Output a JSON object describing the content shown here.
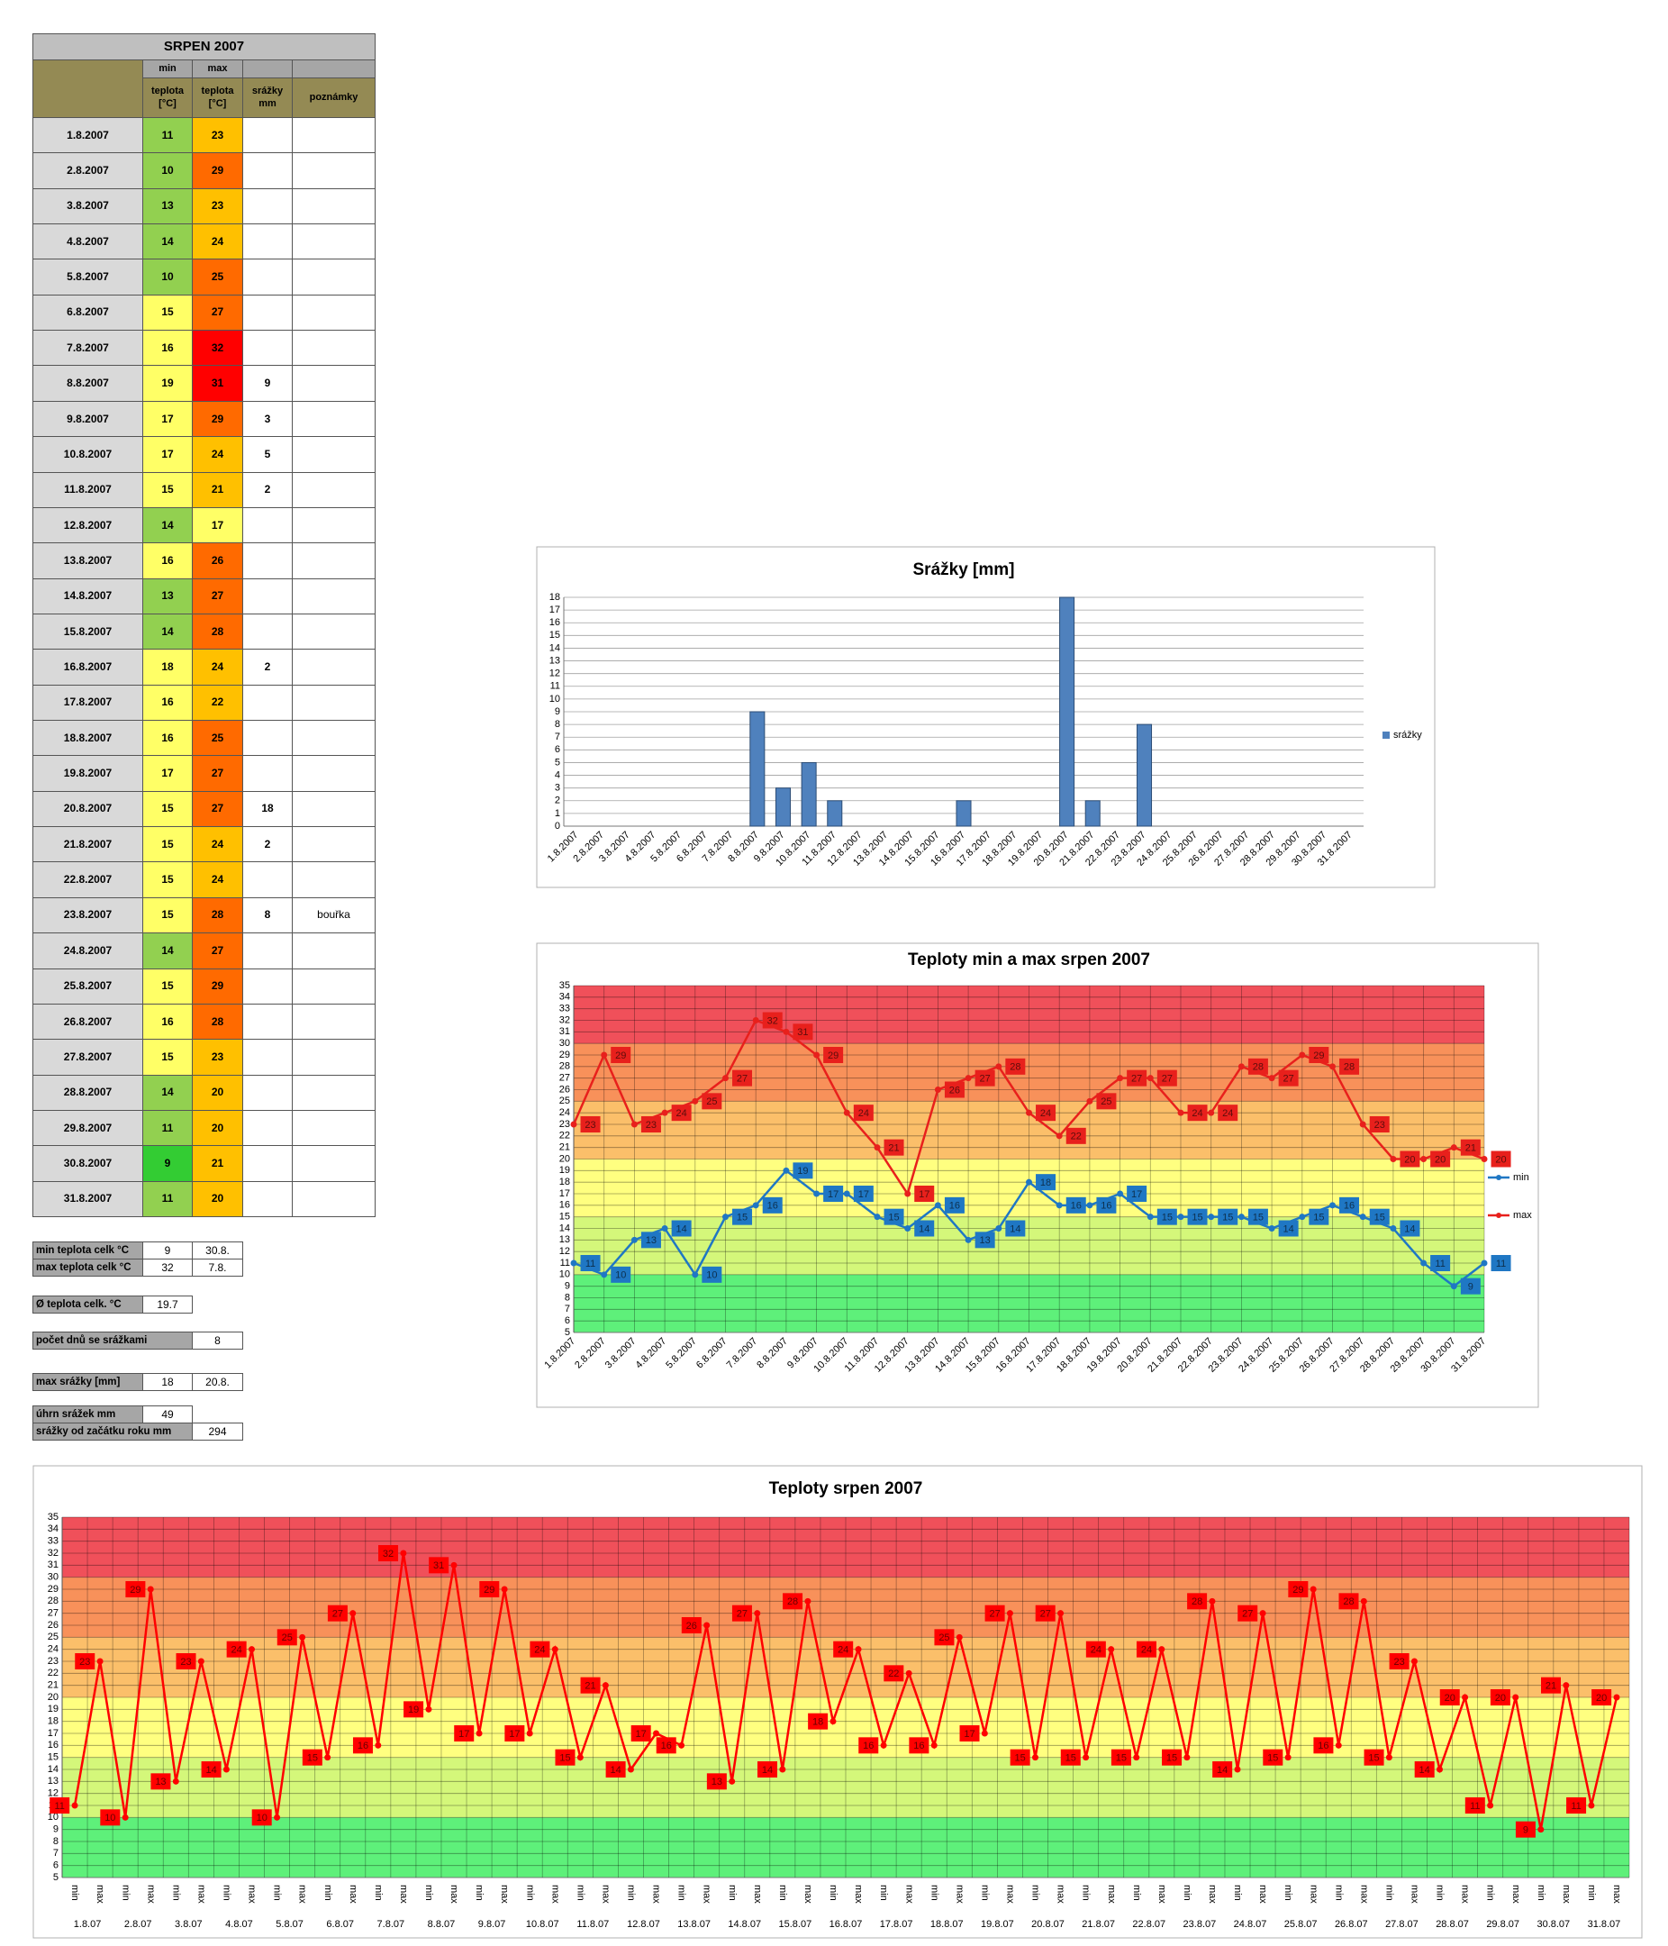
{
  "table": {
    "title": "SRPEN 2007",
    "header_top": [
      "min",
      "max"
    ],
    "header": [
      "teplota [°C]",
      "teplota [°C]",
      "srážky mm",
      "poznámky"
    ],
    "color_scale": [
      {
        "from": 5,
        "to": 10,
        "color": "#33cc33"
      },
      {
        "from": 10,
        "to": 15,
        "color": "#92d050"
      },
      {
        "from": 15,
        "to": 20,
        "color": "#ffff66"
      },
      {
        "from": 20,
        "to": 25,
        "color": "#ffc000"
      },
      {
        "from": 25,
        "to": 30,
        "color": "#ff6a00"
      },
      {
        "from": 30,
        "to": 35,
        "color": "#ff0000"
      }
    ],
    "rows": [
      [
        "1.8.2007",
        11,
        23,
        null,
        null
      ],
      [
        "2.8.2007",
        10,
        29,
        null,
        null
      ],
      [
        "3.8.2007",
        13,
        23,
        null,
        null
      ],
      [
        "4.8.2007",
        14,
        24,
        null,
        null
      ],
      [
        "5.8.2007",
        10,
        25,
        null,
        null
      ],
      [
        "6.8.2007",
        15,
        27,
        null,
        null
      ],
      [
        "7.8.2007",
        16,
        32,
        null,
        null
      ],
      [
        "8.8.2007",
        19,
        31,
        9,
        null
      ],
      [
        "9.8.2007",
        17,
        29,
        3,
        null
      ],
      [
        "10.8.2007",
        17,
        24,
        5,
        null
      ],
      [
        "11.8.2007",
        15,
        21,
        2,
        null
      ],
      [
        "12.8.2007",
        14,
        17,
        null,
        null
      ],
      [
        "13.8.2007",
        16,
        26,
        null,
        null
      ],
      [
        "14.8.2007",
        13,
        27,
        null,
        null
      ],
      [
        "15.8.2007",
        14,
        28,
        null,
        null
      ],
      [
        "16.8.2007",
        18,
        24,
        2,
        null
      ],
      [
        "17.8.2007",
        16,
        22,
        null,
        null
      ],
      [
        "18.8.2007",
        16,
        25,
        null,
        null
      ],
      [
        "19.8.2007",
        17,
        27,
        null,
        null
      ],
      [
        "20.8.2007",
        15,
        27,
        18,
        null
      ],
      [
        "21.8.2007",
        15,
        24,
        2,
        null
      ],
      [
        "22.8.2007",
        15,
        24,
        null,
        null
      ],
      [
        "23.8.2007",
        15,
        28,
        8,
        "bouřka"
      ],
      [
        "24.8.2007",
        14,
        27,
        null,
        null
      ],
      [
        "25.8.2007",
        15,
        29,
        null,
        null
      ],
      [
        "26.8.2007",
        16,
        28,
        null,
        null
      ],
      [
        "27.8.2007",
        15,
        23,
        null,
        null
      ],
      [
        "28.8.2007",
        14,
        20,
        null,
        null
      ],
      [
        "29.8.2007",
        11,
        20,
        null,
        null
      ],
      [
        "30.8.2007",
        9,
        21,
        null,
        null
      ],
      [
        "31.8.2007",
        11,
        20,
        null,
        null
      ]
    ]
  },
  "summary": [
    {
      "label": "min teplota celk °C",
      "values": [
        9,
        "30.8."
      ]
    },
    {
      "label": "max teplota celk °C",
      "values": [
        32,
        "7.8."
      ]
    },
    {
      "label": "Ø teplota celk. °C",
      "values": [
        19.7
      ]
    },
    {
      "label": "počet dnů se srážkami",
      "values": [
        8
      ]
    },
    {
      "label": "max srážky [mm]",
      "values": [
        18,
        "20.8."
      ]
    },
    {
      "label": "úhrn srážek mm",
      "values": [
        49
      ]
    },
    {
      "label": "srážky od začátku roku mm",
      "values": [
        294
      ]
    }
  ],
  "chart_data": [
    {
      "type": "bar",
      "title": "Srážky [mm]",
      "categories": [
        "1.8.2007",
        "2.8.2007",
        "3.8.2007",
        "4.8.2007",
        "5.8.2007",
        "6.8.2007",
        "7.8.2007",
        "8.8.2007",
        "9.8.2007",
        "10.8.2007",
        "11.8.2007",
        "12.8.2007",
        "13.8.2007",
        "14.8.2007",
        "15.8.2007",
        "16.8.2007",
        "17.8.2007",
        "18.8.2007",
        "19.8.2007",
        "20.8.2007",
        "21.8.2007",
        "22.8.2007",
        "23.8.2007",
        "24.8.2007",
        "25.8.2007",
        "26.8.2007",
        "27.8.2007",
        "28.8.2007",
        "29.8.2007",
        "30.8.2007",
        "31.8.2007"
      ],
      "series": [
        {
          "name": "srážky",
          "color": "#4f81bd",
          "values": [
            null,
            null,
            null,
            null,
            null,
            null,
            null,
            9,
            3,
            5,
            2,
            null,
            null,
            null,
            null,
            2,
            null,
            null,
            null,
            18,
            2,
            null,
            8,
            null,
            null,
            null,
            null,
            null,
            null,
            null,
            null
          ]
        }
      ],
      "ylim": [
        0,
        18
      ],
      "yticks": [
        0,
        1,
        2,
        3,
        4,
        5,
        6,
        7,
        8,
        9,
        10,
        11,
        12,
        13,
        14,
        15,
        16,
        17,
        18
      ],
      "grid": true,
      "legend": "right"
    },
    {
      "type": "line",
      "title": "Teploty min a max srpen 2007",
      "categories": [
        "1.8.2007",
        "2.8.2007",
        "3.8.2007",
        "4.8.2007",
        "5.8.2007",
        "6.8.2007",
        "7.8.2007",
        "8.8.2007",
        "9.8.2007",
        "10.8.2007",
        "11.8.2007",
        "12.8.2007",
        "13.8.2007",
        "14.8.2007",
        "15.8.2007",
        "16.8.2007",
        "17.8.2007",
        "18.8.2007",
        "19.8.2007",
        "20.8.2007",
        "21.8.2007",
        "22.8.2007",
        "23.8.2007",
        "24.8.2007",
        "25.8.2007",
        "26.8.2007",
        "27.8.2007",
        "28.8.2007",
        "29.8.2007",
        "30.8.2007",
        "31.8.2007"
      ],
      "series": [
        {
          "name": "min",
          "color": "#1f77c4",
          "values": [
            11,
            10,
            13,
            14,
            10,
            15,
            16,
            19,
            17,
            17,
            15,
            14,
            16,
            13,
            14,
            18,
            16,
            16,
            17,
            15,
            15,
            15,
            15,
            14,
            15,
            16,
            15,
            14,
            11,
            9,
            11
          ]
        },
        {
          "name": "max",
          "color": "#e8201c",
          "values": [
            23,
            29,
            23,
            24,
            25,
            27,
            32,
            31,
            29,
            24,
            21,
            17,
            26,
            27,
            28,
            24,
            22,
            25,
            27,
            27,
            24,
            24,
            28,
            27,
            29,
            28,
            23,
            20,
            20,
            21,
            20
          ]
        }
      ],
      "ylim": [
        5,
        35
      ],
      "yticks": [
        5,
        6,
        7,
        8,
        9,
        10,
        11,
        12,
        13,
        14,
        15,
        16,
        17,
        18,
        19,
        20,
        21,
        22,
        23,
        24,
        25,
        26,
        27,
        28,
        29,
        30,
        31,
        32,
        33,
        34,
        35
      ],
      "grid": true,
      "vertical_grid": true,
      "legend": "right",
      "bands": [
        {
          "from": 5,
          "to": 10,
          "color": "#5ef07a"
        },
        {
          "from": 10,
          "to": 15,
          "color": "#d4f77a"
        },
        {
          "from": 15,
          "to": 20,
          "color": "#ffff80"
        },
        {
          "from": 20,
          "to": 25,
          "color": "#fbbf6a"
        },
        {
          "from": 25,
          "to": 30,
          "color": "#f8915a"
        },
        {
          "from": 30,
          "to": 35,
          "color": "#f0505a"
        }
      ]
    },
    {
      "type": "line",
      "title": "Teploty srpen 2007",
      "categories": [
        "min",
        "max",
        "min",
        "max",
        "min",
        "max",
        "min",
        "max",
        "min",
        "max",
        "min",
        "max",
        "min",
        "max",
        "min",
        "max",
        "min",
        "max",
        "min",
        "max",
        "min",
        "max",
        "min",
        "max",
        "min",
        "max",
        "min",
        "max",
        "min",
        "max",
        "min",
        "max",
        "min",
        "max",
        "min",
        "max",
        "min",
        "max",
        "min",
        "max",
        "min",
        "max",
        "min",
        "max",
        "min",
        "max",
        "min",
        "max",
        "min",
        "max",
        "min",
        "max",
        "min",
        "max",
        "min",
        "max",
        "min",
        "max",
        "min",
        "max",
        "min",
        "max"
      ],
      "groups": [
        "1.8.07",
        "2.8.07",
        "3.8.07",
        "4.8.07",
        "5.8.07",
        "6.8.07",
        "7.8.07",
        "8.8.07",
        "9.8.07",
        "10.8.07",
        "11.8.07",
        "12.8.07",
        "13.8.07",
        "14.8.07",
        "15.8.07",
        "16.8.07",
        "17.8.07",
        "18.8.07",
        "19.8.07",
        "20.8.07",
        "21.8.07",
        "22.8.07",
        "23.8.07",
        "24.8.07",
        "25.8.07",
        "26.8.07",
        "27.8.07",
        "28.8.07",
        "29.8.07",
        "30.8.07",
        "31.8.07"
      ],
      "values": [
        11,
        23,
        10,
        29,
        13,
        23,
        14,
        24,
        10,
        25,
        15,
        27,
        16,
        32,
        19,
        31,
        17,
        29,
        17,
        24,
        15,
        21,
        14,
        17,
        16,
        26,
        13,
        27,
        14,
        28,
        18,
        24,
        16,
        22,
        16,
        25,
        17,
        27,
        15,
        27,
        15,
        24,
        15,
        24,
        15,
        28,
        14,
        27,
        15,
        29,
        16,
        28,
        15,
        23,
        14,
        20,
        11,
        20,
        9,
        21,
        11,
        20
      ],
      "color": "#ff0000",
      "ylim": [
        5,
        35
      ],
      "yticks": [
        5,
        6,
        7,
        8,
        9,
        10,
        11,
        12,
        13,
        14,
        15,
        16,
        17,
        18,
        19,
        20,
        21,
        22,
        23,
        24,
        25,
        26,
        27,
        28,
        29,
        30,
        31,
        32,
        33,
        34,
        35
      ],
      "grid": true,
      "vertical_grid": true,
      "bands": [
        {
          "from": 5,
          "to": 10,
          "color": "#5ef07a"
        },
        {
          "from": 10,
          "to": 15,
          "color": "#d4f77a"
        },
        {
          "from": 15,
          "to": 20,
          "color": "#ffff80"
        },
        {
          "from": 20,
          "to": 25,
          "color": "#fbbf6a"
        },
        {
          "from": 25,
          "to": 30,
          "color": "#f8915a"
        },
        {
          "from": 30,
          "to": 35,
          "color": "#f0505a"
        }
      ]
    }
  ]
}
